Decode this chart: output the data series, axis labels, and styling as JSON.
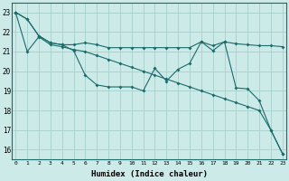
{
  "xlabel": "Humidex (Indice chaleur)",
  "background_color": "#cceae8",
  "grid_color": "#aad4d0",
  "line_color": "#1a6b6b",
  "x_ticks": [
    0,
    1,
    2,
    3,
    4,
    5,
    6,
    7,
    8,
    9,
    10,
    11,
    12,
    13,
    14,
    15,
    16,
    17,
    18,
    19,
    20,
    21,
    22,
    23
  ],
  "y_ticks": [
    16,
    17,
    18,
    19,
    20,
    21,
    22,
    23
  ],
  "xlim": [
    -0.3,
    23.3
  ],
  "ylim": [
    15.5,
    23.5
  ],
  "series": [
    [
      23.0,
      22.65,
      21.8,
      21.45,
      21.35,
      21.35,
      21.45,
      21.35,
      21.2,
      21.2,
      21.2,
      21.2,
      21.2,
      21.2,
      21.2,
      21.2,
      21.5,
      21.3,
      21.5,
      21.4,
      21.35,
      21.3,
      21.3,
      21.25
    ],
    [
      23.0,
      22.65,
      21.8,
      21.45,
      21.35,
      21.05,
      19.8,
      19.3,
      19.2,
      19.2,
      19.2,
      19.0,
      20.15,
      19.5,
      20.1,
      20.4,
      21.5,
      21.05,
      21.5,
      19.15,
      19.1,
      18.5,
      17.0,
      15.8
    ],
    [
      23.0,
      21.0,
      21.75,
      21.35,
      21.25,
      21.1,
      21.0,
      20.8,
      20.6,
      20.4,
      20.2,
      20.0,
      19.8,
      19.6,
      19.4,
      19.2,
      19.0,
      18.8,
      18.6,
      18.4,
      18.2,
      18.0,
      17.0,
      15.8
    ]
  ]
}
